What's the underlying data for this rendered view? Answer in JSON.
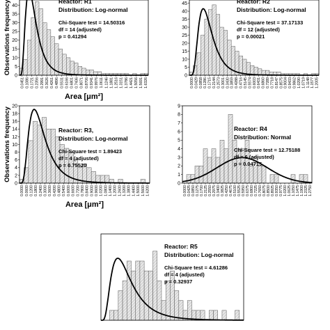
{
  "chart_data": [
    {
      "id": "R1",
      "type": "bar",
      "ylabel": "Observations frequency",
      "xlabel": "Area [μm²]",
      "reactor_label": "Reactor: R1",
      "distribution": "Distribution: Log-normal",
      "chi_square": "Chi-Square test = 14.50316",
      "df": "df = 14 (adjusted)",
      "p": "p = 0.41294",
      "yticks": [
        "0",
        "5",
        "10",
        "15",
        "20",
        "25",
        "30",
        "35",
        "40"
      ],
      "ylim": [
        0,
        43
      ],
      "xticks": [
        "0.0451",
        "0.1086",
        "0.1721",
        "0.2356",
        "0.2991",
        "0.3626",
        "0.4261",
        "0.4896",
        "0.5531",
        "0.6166",
        "0.6801",
        "0.7436",
        "0.8071",
        "0.8706",
        "0.9341",
        "0.9976",
        "1.0611",
        "1.1246",
        "1.1881",
        "1.2516",
        "1.3151",
        "1.3786",
        "1.4421",
        "1.5056",
        "1.5691",
        "1.6326"
      ],
      "values": [
        4,
        9,
        20,
        33,
        42,
        38,
        30,
        26,
        22,
        18,
        15,
        12,
        10,
        8,
        7,
        5,
        4,
        3,
        3,
        2,
        2,
        1,
        1,
        1,
        1,
        1,
        1,
        1,
        0,
        1,
        0,
        1,
        1
      ]
    },
    {
      "id": "R2",
      "type": "bar",
      "reactor_label": "Reactor: R2",
      "distribution": "Distribution: Log-normal",
      "chi_square": "Chi-Square test = 37.17133",
      "df": "df = 12 (adjusted)",
      "p": "p = 0.00021",
      "yticks": [
        "0",
        "5",
        "10",
        "15",
        "20",
        "25",
        "30",
        "35",
        "40",
        "45"
      ],
      "ylim": [
        0,
        47
      ],
      "xticks": [
        "0.0000",
        "0.0429",
        "0.0858",
        "0.1286",
        "0.1715",
        "0.2144",
        "0.2573",
        "0.3001",
        "0.3430",
        "0.3859",
        "0.4288",
        "0.4716",
        "0.5145",
        "0.5574",
        "0.6003",
        "0.6431",
        "0.6860",
        "0.7289",
        "0.7718",
        "0.8147",
        "0.8575",
        "0.9004",
        "0.9433",
        "0.9862",
        "1.0290",
        "1.0719",
        "1.1148",
        "1.1577",
        "1.2005"
      ],
      "values": [
        2,
        6,
        14,
        25,
        35,
        41,
        44,
        38,
        30,
        28,
        22,
        18,
        15,
        12,
        10,
        8,
        6,
        5,
        4,
        3,
        3,
        2,
        2,
        2,
        1,
        1,
        1,
        1,
        1,
        0,
        1,
        0,
        1,
        1
      ]
    },
    {
      "id": "R3",
      "type": "bar",
      "ylabel": "Observations frequency",
      "xlabel": "Area [μm²]",
      "reactor_label": "Reactor: R3,",
      "distribution": "Distribution: Log-normal",
      "chi_square": "Chi-Square test = 1.89423",
      "df": "df = 4 (adjusted)",
      "p": "p = 0.75520",
      "yticks": [
        "0",
        "2",
        "4",
        "6",
        "8",
        "10",
        "12",
        "14",
        "16",
        "18",
        "20"
      ],
      "ylim": [
        0,
        20
      ],
      "xticks": [
        "0.0000",
        "0.0600",
        "0.1200",
        "0.1800",
        "0.2400",
        "0.3000",
        "0.3600",
        "0.4200",
        "0.4800",
        "0.5400",
        "0.6000",
        "0.6600",
        "0.7200",
        "0.7800",
        "0.8400",
        "0.9000",
        "0.9600",
        "1.0200",
        "1.0800",
        "1.1400",
        "1.2000",
        "1.2600",
        "1.3200",
        "1.3800",
        "1.4400",
        "1.5000",
        "1.5600",
        "1.6200"
      ],
      "values": [
        1,
        4,
        11,
        16,
        15,
        17,
        14,
        14,
        12,
        10,
        9,
        8,
        6,
        4,
        5,
        4,
        3,
        2,
        2,
        2,
        1,
        0,
        1,
        0,
        0,
        0,
        0,
        1,
        0
      ]
    },
    {
      "id": "R4",
      "type": "bar",
      "reactor_label": "Reactor: R4",
      "distribution": "Distribution: Normal",
      "chi_square": "Chi-Square test = 12.75188",
      "df": "df = 6 (adjusted)",
      "p": "p = 0.04715",
      "yticks": [
        "0",
        "1",
        "2",
        "3",
        "4",
        "5",
        "6",
        "7",
        "8",
        "9"
      ],
      "ylim": [
        0,
        9
      ],
      "xticks": [
        "0.0000",
        "0.0425",
        "0.0850",
        "0.1275",
        "0.1700",
        "0.2125",
        "0.2550",
        "0.2975",
        "0.3400",
        "0.3825",
        "0.4250",
        "0.4675",
        "0.5100",
        "0.5525",
        "0.5950",
        "0.6375",
        "0.6800",
        "0.7225",
        "0.7650",
        "0.8075",
        "0.8500",
        "0.8925",
        "0.9350",
        "0.9775",
        "1.0200",
        "1.0625",
        "1.1050",
        "1.1475",
        "1.1900",
        "1.2325",
        "1.2750"
      ],
      "values": [
        0,
        1,
        1,
        2,
        2,
        4,
        3,
        4,
        3,
        5,
        4,
        8,
        5,
        4,
        4,
        5,
        2,
        3,
        2,
        2,
        0,
        1,
        1,
        0,
        0,
        0,
        1,
        0,
        1,
        1,
        0
      ]
    },
    {
      "id": "R5",
      "type": "bar",
      "reactor_label": "Reactor: R5",
      "distribution": "Distribution: Log-normal",
      "chi_square": "Chi-Square test = 4.61286",
      "df": "df = 4 (adjusted)",
      "p": "p = 0.32937",
      "values": [
        0,
        0,
        1,
        1,
        3,
        4,
        6,
        5,
        6,
        6,
        5,
        5,
        7,
        4,
        2,
        4,
        5,
        3,
        2,
        1,
        2,
        1,
        1,
        1,
        0,
        1,
        1,
        0,
        1,
        0,
        0,
        1,
        0
      ]
    }
  ]
}
